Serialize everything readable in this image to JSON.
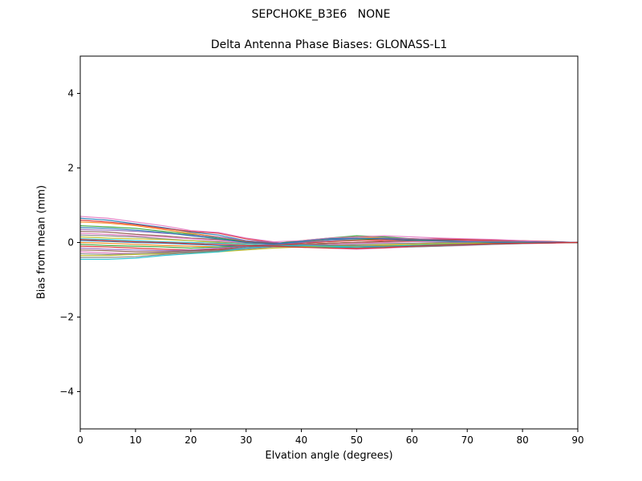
{
  "suptitle": "SEPCHOKE_B3E6   NONE",
  "chart_data": {
    "type": "line",
    "title": "Delta Antenna Phase Biases: GLONASS-L1",
    "xlabel": "Elvation angle (degrees)",
    "ylabel": "Bias from mean (mm)",
    "xlim": [
      0,
      90
    ],
    "ylim": [
      -5,
      5
    ],
    "xticks": [
      0,
      10,
      20,
      30,
      40,
      50,
      60,
      70,
      80,
      90
    ],
    "yticks": [
      -4,
      -2,
      0,
      2,
      4
    ],
    "grid": false,
    "legend": "none",
    "axis_color": "#000000",
    "x": [
      0,
      5,
      10,
      15,
      20,
      25,
      30,
      35,
      40,
      45,
      50,
      55,
      60,
      65,
      70,
      75,
      80,
      85,
      90
    ],
    "series": [
      {
        "name": "line-01",
        "color": "#1f77b4",
        "values": [
          0.65,
          0.6,
          0.5,
          0.4,
          0.28,
          0.2,
          0.05,
          -0.02,
          0.02,
          0.08,
          0.1,
          0.1,
          0.08,
          0.06,
          0.05,
          0.04,
          0.03,
          0.02,
          0.0
        ]
      },
      {
        "name": "line-02",
        "color": "#ff7f0e",
        "values": [
          0.55,
          0.52,
          0.45,
          0.35,
          0.25,
          0.15,
          0.03,
          -0.05,
          0.0,
          0.1,
          0.15,
          0.12,
          0.1,
          0.08,
          0.06,
          0.04,
          0.02,
          0.01,
          0.0
        ]
      },
      {
        "name": "line-03",
        "color": "#2ca02c",
        "values": [
          0.45,
          0.42,
          0.38,
          0.3,
          0.22,
          0.12,
          0.02,
          -0.03,
          0.05,
          0.12,
          0.18,
          0.15,
          0.1,
          0.05,
          0.03,
          0.05,
          0.04,
          0.02,
          0.0
        ]
      },
      {
        "name": "line-04",
        "color": "#d62728",
        "values": [
          0.6,
          0.55,
          0.48,
          0.38,
          0.3,
          0.25,
          0.1,
          0.0,
          -0.05,
          -0.02,
          0.0,
          0.05,
          0.08,
          0.1,
          0.08,
          0.06,
          0.05,
          0.03,
          0.0
        ]
      },
      {
        "name": "line-05",
        "color": "#9467bd",
        "values": [
          0.35,
          0.33,
          0.3,
          0.25,
          0.2,
          0.15,
          0.05,
          0.0,
          -0.05,
          -0.08,
          -0.1,
          -0.08,
          -0.05,
          -0.02,
          0.0,
          0.02,
          0.02,
          0.01,
          0.0
        ]
      },
      {
        "name": "line-06",
        "color": "#8c564b",
        "values": [
          0.3,
          0.28,
          0.22,
          0.18,
          0.12,
          0.08,
          0.02,
          -0.02,
          -0.08,
          -0.12,
          -0.15,
          -0.12,
          -0.1,
          -0.08,
          -0.05,
          -0.03,
          -0.02,
          -0.01,
          0.0
        ]
      },
      {
        "name": "line-07",
        "color": "#e377c2",
        "values": [
          0.25,
          0.22,
          0.18,
          0.15,
          0.1,
          0.05,
          0.0,
          -0.05,
          -0.1,
          -0.15,
          -0.18,
          -0.15,
          -0.12,
          -0.1,
          -0.08,
          -0.05,
          -0.03,
          -0.02,
          0.0
        ]
      },
      {
        "name": "line-08",
        "color": "#7f7f7f",
        "values": [
          0.2,
          0.18,
          0.15,
          0.1,
          0.05,
          0.02,
          -0.02,
          -0.05,
          -0.08,
          -0.1,
          -0.12,
          -0.1,
          -0.08,
          -0.06,
          -0.04,
          -0.03,
          -0.02,
          -0.01,
          0.0
        ]
      },
      {
        "name": "line-09",
        "color": "#bcbd22",
        "values": [
          0.15,
          0.12,
          0.1,
          0.08,
          0.05,
          0.0,
          -0.05,
          -0.08,
          -0.1,
          -0.12,
          -0.1,
          -0.08,
          -0.05,
          -0.03,
          -0.02,
          -0.01,
          0.0,
          0.0,
          0.0
        ]
      },
      {
        "name": "line-10",
        "color": "#17becf",
        "values": [
          0.1,
          0.08,
          0.05,
          0.02,
          0.0,
          -0.02,
          -0.05,
          -0.08,
          -0.12,
          -0.14,
          -0.12,
          -0.1,
          -0.08,
          -0.05,
          -0.03,
          -0.02,
          -0.01,
          0.0,
          0.0
        ]
      },
      {
        "name": "line-11",
        "color": "#1f77b4",
        "values": [
          0.05,
          0.03,
          0.0,
          -0.02,
          -0.05,
          -0.08,
          -0.1,
          -0.08,
          -0.05,
          -0.02,
          0.0,
          0.02,
          0.05,
          0.05,
          0.04,
          0.03,
          0.02,
          0.01,
          0.0
        ]
      },
      {
        "name": "line-12",
        "color": "#ff7f0e",
        "values": [
          0.0,
          -0.02,
          -0.05,
          -0.08,
          -0.1,
          -0.12,
          -0.1,
          -0.08,
          -0.05,
          -0.02,
          0.0,
          0.02,
          0.03,
          0.04,
          0.03,
          0.02,
          0.01,
          0.0,
          0.0
        ]
      },
      {
        "name": "line-13",
        "color": "#2ca02c",
        "values": [
          -0.05,
          -0.08,
          -0.1,
          -0.12,
          -0.15,
          -0.12,
          -0.1,
          -0.05,
          0.0,
          0.05,
          0.08,
          0.1,
          0.08,
          0.06,
          0.05,
          0.03,
          0.02,
          0.01,
          0.0
        ]
      },
      {
        "name": "line-14",
        "color": "#d62728",
        "values": [
          -0.1,
          -0.12,
          -0.15,
          -0.18,
          -0.2,
          -0.18,
          -0.12,
          -0.08,
          -0.02,
          0.02,
          0.05,
          0.08,
          0.1,
          0.08,
          0.06,
          0.04,
          0.02,
          0.01,
          0.0
        ]
      },
      {
        "name": "line-15",
        "color": "#9467bd",
        "values": [
          -0.15,
          -0.18,
          -0.2,
          -0.22,
          -0.2,
          -0.15,
          -0.1,
          -0.05,
          0.0,
          0.05,
          0.1,
          0.12,
          0.1,
          0.08,
          0.05,
          0.03,
          0.02,
          0.01,
          0.0
        ]
      },
      {
        "name": "line-16",
        "color": "#8c564b",
        "values": [
          -0.2,
          -0.22,
          -0.25,
          -0.25,
          -0.22,
          -0.2,
          -0.12,
          -0.08,
          -0.05,
          -0.02,
          0.0,
          0.02,
          0.05,
          0.06,
          0.05,
          0.04,
          0.03,
          0.01,
          0.0
        ]
      },
      {
        "name": "line-17",
        "color": "#e377c2",
        "values": [
          -0.25,
          -0.28,
          -0.3,
          -0.28,
          -0.25,
          -0.22,
          -0.15,
          -0.1,
          -0.08,
          -0.05,
          -0.02,
          0.0,
          0.02,
          0.03,
          0.04,
          0.03,
          0.02,
          0.01,
          0.0
        ]
      },
      {
        "name": "line-18",
        "color": "#7f7f7f",
        "values": [
          -0.3,
          -0.32,
          -0.3,
          -0.28,
          -0.25,
          -0.22,
          -0.18,
          -0.12,
          -0.1,
          -0.08,
          -0.05,
          -0.03,
          -0.02,
          0.0,
          0.02,
          0.02,
          0.01,
          0.0,
          0.0
        ]
      },
      {
        "name": "line-19",
        "color": "#bcbd22",
        "values": [
          -0.35,
          -0.35,
          -0.32,
          -0.3,
          -0.28,
          -0.25,
          -0.2,
          -0.15,
          -0.12,
          -0.1,
          -0.08,
          -0.06,
          -0.05,
          -0.03,
          -0.02,
          -0.01,
          0.0,
          0.0,
          0.0
        ]
      },
      {
        "name": "line-20",
        "color": "#17becf",
        "values": [
          -0.45,
          -0.45,
          -0.42,
          -0.35,
          -0.3,
          -0.25,
          -0.15,
          -0.1,
          -0.08,
          -0.1,
          -0.12,
          -0.12,
          -0.1,
          -0.08,
          -0.06,
          -0.04,
          -0.02,
          -0.01,
          0.0
        ]
      },
      {
        "name": "line-21",
        "color": "#e377c2",
        "values": [
          0.7,
          0.65,
          0.55,
          0.45,
          0.32,
          0.27,
          0.12,
          0.02,
          0.05,
          0.12,
          0.15,
          0.18,
          0.15,
          0.12,
          0.1,
          0.08,
          0.05,
          0.02,
          0.0
        ]
      },
      {
        "name": "line-22",
        "color": "#1f77b4",
        "values": [
          0.4,
          0.38,
          0.33,
          0.27,
          0.18,
          0.1,
          0.0,
          -0.04,
          0.03,
          0.1,
          0.12,
          0.1,
          0.06,
          0.04,
          0.02,
          0.0,
          0.01,
          0.01,
          0.0
        ]
      },
      {
        "name": "line-23",
        "color": "#7f7f7f",
        "values": [
          -0.4,
          -0.4,
          -0.38,
          -0.32,
          -0.27,
          -0.22,
          -0.12,
          -0.08,
          -0.05,
          -0.06,
          -0.08,
          -0.1,
          -0.12,
          -0.1,
          -0.07,
          -0.05,
          -0.03,
          -0.01,
          0.0
        ]
      },
      {
        "name": "line-24",
        "color": "#d62728",
        "values": [
          0.08,
          0.05,
          0.02,
          0.0,
          -0.03,
          -0.05,
          -0.08,
          -0.1,
          -0.13,
          -0.15,
          -0.16,
          -0.14,
          -0.1,
          -0.07,
          -0.05,
          -0.03,
          -0.02,
          -0.01,
          0.0
        ]
      }
    ]
  }
}
